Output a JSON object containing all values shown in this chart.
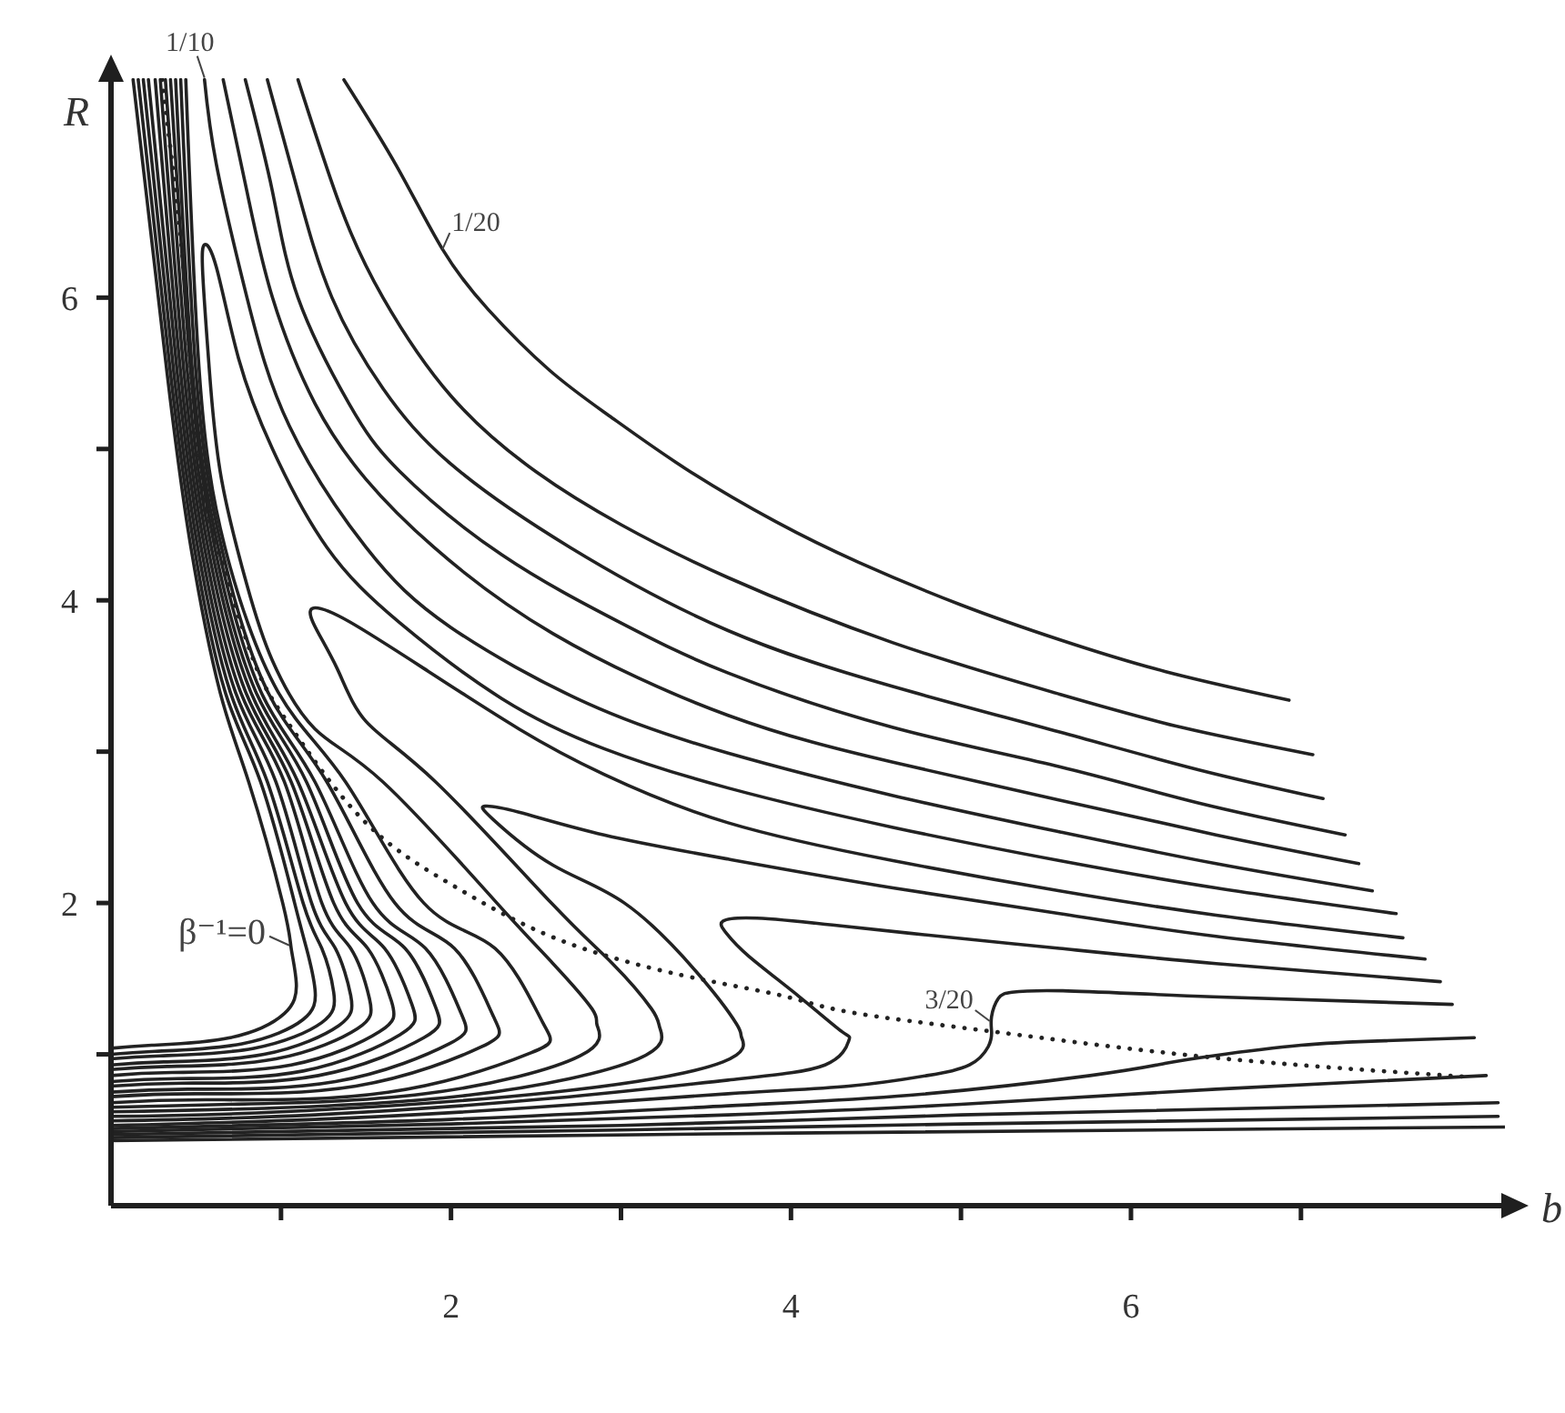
{
  "chart_data": {
    "type": "line",
    "xlabel": "b",
    "ylabel": "R",
    "xlim": [
      0,
      8.2
    ],
    "ylim": [
      0,
      7.45
    ],
    "xticks": [
      {
        "value": 1,
        "label": null
      },
      2,
      {
        "value": 3,
        "label": null
      },
      4,
      {
        "value": 5,
        "label": null
      },
      6,
      {
        "value": 7,
        "label": null
      }
    ],
    "yticks": [
      {
        "value": 1,
        "label": null
      },
      2,
      {
        "value": 3,
        "label": null
      },
      4,
      {
        "value": 5,
        "label": null
      },
      6
    ],
    "marker": "none",
    "line_style": "solid",
    "annotations": [
      {
        "text": "β⁻¹=0",
        "x": 1.06,
        "y": 1.72
      },
      {
        "text": "1/10",
        "x": 0.55,
        "y": 7.44
      },
      {
        "text": "1/20",
        "x": 1.95,
        "y": 6.32
      },
      {
        "text": "3/20",
        "x": 5.18,
        "y": 1.22
      }
    ],
    "series": [
      {
        "color": "#222222",
        "x": [
          0.13,
          0.33,
          0.47,
          0.64,
          0.81,
          1.01,
          1.06,
          1.09,
          1.02,
          0.7,
          0.24,
          0
        ],
        "values": [
          7.44,
          5.5,
          4.35,
          3.4,
          2.8,
          2.0,
          1.7,
          1.47,
          1.27,
          1.11,
          1.06,
          1.04
        ]
      },
      {
        "color": "#222222",
        "x": [
          0.16,
          0.35,
          0.49,
          0.67,
          0.88,
          1.08,
          1.15,
          1.2,
          1.13,
          0.77,
          0.26,
          0
        ],
        "values": [
          7.44,
          5.5,
          4.35,
          3.4,
          2.8,
          2.0,
          1.7,
          1.43,
          1.23,
          1.07,
          1.02,
          1.0
        ]
      },
      {
        "color": "#222222",
        "x": [
          0.19,
          0.37,
          0.51,
          0.7,
          0.92,
          1.13,
          1.24,
          1.31,
          1.24,
          0.84,
          0.29,
          0
        ],
        "values": [
          7.44,
          5.5,
          4.35,
          3.4,
          2.8,
          2.0,
          1.7,
          1.41,
          1.21,
          1.04,
          0.99,
          0.97
        ]
      },
      {
        "color": "#222222",
        "x": [
          0.22,
          0.39,
          0.53,
          0.73,
          0.97,
          1.18,
          1.32,
          1.41,
          1.34,
          0.9,
          0.31,
          0
        ],
        "values": [
          7.44,
          5.5,
          4.35,
          3.4,
          2.8,
          2.0,
          1.7,
          1.39,
          1.19,
          1.0,
          0.95,
          0.93
        ]
      },
      {
        "color": "#222222",
        "x": [
          0.26,
          0.41,
          0.55,
          0.76,
          1.02,
          1.24,
          1.41,
          1.52,
          1.45,
          0.97,
          0.33,
          0
        ],
        "values": [
          7.44,
          5.5,
          4.35,
          3.4,
          2.8,
          2.0,
          1.7,
          1.37,
          1.17,
          0.97,
          0.92,
          0.9
        ]
      },
      {
        "color": "#222222",
        "x": [
          0.29,
          0.43,
          0.57,
          0.79,
          1.06,
          1.31,
          1.51,
          1.65,
          1.58,
          1.06,
          0.36,
          0
        ],
        "values": [
          7.44,
          5.5,
          4.35,
          3.4,
          2.8,
          2.0,
          1.7,
          1.35,
          1.15,
          0.93,
          0.88,
          0.86
        ]
      },
      {
        "color": "#222222",
        "x": [
          0.32,
          0.45,
          0.59,
          0.82,
          1.1,
          1.38,
          1.61,
          1.77,
          1.7,
          1.13,
          0.39,
          0
        ],
        "values": [
          7.44,
          5.5,
          4.35,
          3.4,
          2.8,
          2.0,
          1.7,
          1.33,
          1.13,
          0.89,
          0.84,
          0.82
        ]
      },
      {
        "color": "#222222",
        "x": [
          0.35,
          0.47,
          0.61,
          0.85,
          1.15,
          1.45,
          1.73,
          1.91,
          1.84,
          1.22,
          0.42,
          0
        ],
        "values": [
          7.44,
          5.5,
          4.35,
          3.4,
          2.8,
          2.0,
          1.7,
          1.31,
          1.11,
          0.86,
          0.81,
          0.79
        ]
      },
      {
        "color": "#222222",
        "x": [
          0.38,
          0.48,
          0.63,
          0.88,
          1.2,
          1.54,
          1.85,
          2.06,
          1.99,
          1.32,
          0.45,
          0
        ],
        "values": [
          7.44,
          5.5,
          4.35,
          3.4,
          2.8,
          2.0,
          1.7,
          1.27,
          1.07,
          0.82,
          0.77,
          0.75
        ]
      },
      {
        "color": "#222222",
        "x": [
          0.41,
          0.5,
          0.65,
          0.92,
          1.27,
          1.67,
          2.02,
          2.25,
          2.18,
          1.44,
          0.5,
          0
        ],
        "values": [
          7.44,
          5.5,
          4.35,
          3.4,
          2.8,
          2.0,
          1.7,
          1.25,
          1.05,
          0.79,
          0.74,
          0.72
        ]
      },
      {
        "color": "#222222",
        "x": [
          0.44,
          0.52,
          0.67,
          0.98,
          1.38,
          1.84,
          2.26,
          2.54,
          2.47,
          1.63,
          0.56,
          0
        ],
        "values": [
          7.44,
          5.5,
          4.35,
          3.4,
          2.8,
          2.0,
          1.7,
          1.21,
          1.01,
          0.75,
          0.7,
          0.68
        ]
      },
      {
        "color": "#222222",
        "x": [
          7.56,
          6.5,
          5.58,
          4.6,
          3.63,
          2.9,
          2.3,
          1.7,
          1.27,
          0.95,
          0.75,
          0.62,
          0.55,
          0.54,
          0.58,
          0.65,
          0.8,
          0.95,
          1.2,
          1.6,
          2.27,
          2.6,
          2.83,
          2.86,
          2.76,
          1.85,
          0.7,
          0
        ],
        "values": [
          1.93,
          2.1,
          2.28,
          2.5,
          2.76,
          3.02,
          3.35,
          3.85,
          4.35,
          5.0,
          5.6,
          6.2,
          6.35,
          6.15,
          5.5,
          4.8,
          4.1,
          3.6,
          3.15,
          2.8,
          2.0,
          1.6,
          1.3,
          1.19,
          0.99,
          0.74,
          0.67,
          0.65
        ]
      },
      {
        "color": "#222222",
        "x": [
          7.6,
          6.5,
          5.58,
          4.6,
          3.63,
          2.9,
          2.4,
          1.84,
          1.4,
          1.2,
          1.19,
          1.33,
          1.5,
          1.91,
          2.59,
          2.95,
          3.18,
          3.23,
          3.1,
          2.1,
          0.8,
          0
        ],
        "values": [
          1.77,
          1.92,
          2.08,
          2.28,
          2.53,
          2.85,
          3.15,
          3.55,
          3.86,
          3.95,
          3.85,
          3.55,
          3.2,
          2.8,
          2.0,
          1.6,
          1.3,
          1.17,
          0.97,
          0.73,
          0.64,
          0.62
        ]
      },
      {
        "color": "#222222",
        "x": [
          7.73,
          6.5,
          5.58,
          4.6,
          3.63,
          2.9,
          2.4,
          2.2,
          2.25,
          2.6,
          3.02,
          3.44,
          3.68,
          3.71,
          3.6,
          2.6,
          1.0,
          0
        ],
        "values": [
          1.63,
          1.78,
          1.93,
          2.1,
          2.29,
          2.45,
          2.6,
          2.64,
          2.55,
          2.25,
          2.0,
          1.55,
          1.2,
          1.11,
          0.95,
          0.75,
          0.62,
          0.59
        ]
      },
      {
        "color": "#222222",
        "x": [
          7.82,
          6.5,
          5.58,
          4.7,
          4.2,
          3.8,
          3.6,
          3.62,
          3.75,
          4.05,
          4.3,
          4.34,
          4.2,
          3.63,
          2.6,
          1.2,
          0
        ],
        "values": [
          1.48,
          1.6,
          1.7,
          1.8,
          1.86,
          1.9,
          1.88,
          1.8,
          1.65,
          1.38,
          1.15,
          1.09,
          0.93,
          0.83,
          0.71,
          0.6,
          0.56
        ]
      },
      {
        "color": "#222222",
        "x": [
          0,
          1.2,
          2.5,
          3.63,
          4.34,
          4.8,
          5.05,
          5.16,
          5.18,
          5.18,
          5.22,
          5.3,
          5.6,
          6.48,
          7.89
        ],
        "values": [
          0.53,
          0.57,
          0.65,
          0.74,
          0.79,
          0.86,
          0.93,
          1.05,
          1.15,
          1.25,
          1.37,
          1.41,
          1.42,
          1.38,
          1.33
        ]
      },
      {
        "color": "#222222",
        "x": [
          0,
          2.0,
          3.63,
          4.7,
          5.76,
          6.2,
          6.48,
          7.0,
          7.5,
          8.02
        ],
        "values": [
          0.51,
          0.57,
          0.66,
          0.73,
          0.86,
          0.94,
          0.99,
          1.06,
          1.09,
          1.11
        ]
      },
      {
        "color": "#222222",
        "x": [
          0,
          2.0,
          3.63,
          5.0,
          6.5,
          8.09
        ],
        "values": [
          0.49,
          0.54,
          0.6,
          0.67,
          0.77,
          0.86
        ]
      },
      {
        "color": "#222222",
        "x": [
          0,
          3.0,
          5.0,
          8.16
        ],
        "values": [
          0.47,
          0.53,
          0.6,
          0.68
        ]
      },
      {
        "color": "#222222",
        "x": [
          0,
          3.0,
          5.0,
          8.16
        ],
        "values": [
          0.45,
          0.5,
          0.54,
          0.59
        ]
      },
      {
        "color": "#222222",
        "x": [
          0,
          4.0,
          8.2
        ],
        "values": [
          0.43,
          0.48,
          0.52
        ]
      },
      {
        "color": "#222222",
        "x": [
          0.55,
          0.62,
          0.8,
          1.05,
          1.5,
          2.0,
          2.8,
          3.63,
          4.6,
          5.58,
          6.5,
          7.42
        ],
        "values": [
          7.44,
          6.88,
          6.0,
          5.15,
          4.35,
          3.82,
          3.32,
          2.99,
          2.71,
          2.47,
          2.26,
          2.08
        ]
      },
      {
        "color": "#222222",
        "x": [
          0.66,
          0.8,
          0.95,
          1.2,
          1.5,
          1.9,
          2.6,
          3.63,
          4.6,
          5.58,
          6.5,
          7.34
        ],
        "values": [
          7.44,
          6.7,
          6.0,
          5.3,
          4.8,
          4.35,
          3.78,
          3.24,
          2.93,
          2.68,
          2.45,
          2.26
        ]
      },
      {
        "color": "#222222",
        "x": [
          0.79,
          0.95,
          1.1,
          1.4,
          1.7,
          2.3,
          3.0,
          3.63,
          4.6,
          5.58,
          6.4,
          7.26
        ],
        "values": [
          7.44,
          6.7,
          6.0,
          5.3,
          4.85,
          4.3,
          3.85,
          3.52,
          3.16,
          2.9,
          2.66,
          2.45
        ]
      },
      {
        "color": "#222222",
        "x": [
          0.92,
          1.1,
          1.3,
          1.6,
          2.0,
          2.7,
          3.63,
          4.6,
          5.58,
          6.4,
          7.13
        ],
        "values": [
          7.44,
          6.7,
          6.0,
          5.4,
          4.9,
          4.35,
          3.8,
          3.43,
          3.13,
          2.88,
          2.69
        ]
      },
      {
        "color": "#222222",
        "x": [
          1.1,
          1.35,
          1.6,
          2.0,
          2.5,
          3.0,
          3.63,
          4.6,
          5.58,
          6.3,
          7.07
        ],
        "values": [
          7.44,
          6.6,
          6.0,
          5.35,
          4.85,
          4.5,
          4.15,
          3.72,
          3.38,
          3.16,
          2.98
        ]
      },
      {
        "color": "#222222",
        "x": [
          1.37,
          1.68,
          1.95,
          2.22,
          2.58,
          2.93,
          3.38,
          3.91,
          4.4,
          5.0,
          5.58,
          6.2,
          6.93
        ],
        "values": [
          7.44,
          6.87,
          6.32,
          5.92,
          5.52,
          5.22,
          4.87,
          4.52,
          4.25,
          3.97,
          3.74,
          3.53,
          3.34
        ]
      },
      {
        "color": "#222222",
        "line_style": "dotted",
        "x": [
          0.3,
          0.38,
          0.44,
          0.52,
          0.64,
          0.84,
          1.06,
          1.49,
          2.02,
          2.63,
          3.37,
          3.94,
          4.34,
          5.19,
          6.47,
          8.0
        ],
        "values": [
          7.44,
          6.7,
          6.0,
          4.9,
          4.3,
          3.6,
          3.16,
          2.54,
          2.11,
          1.76,
          1.52,
          1.39,
          1.28,
          1.15,
          0.98,
          0.85
        ]
      }
    ]
  }
}
